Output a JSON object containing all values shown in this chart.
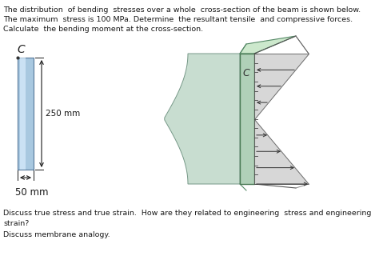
{
  "bg_color": "#ffffff",
  "text_color": "#1a1a1a",
  "line1": "The distribution  of bending  stresses over a whole  cross-section of the beam is shown below.",
  "line2": "The maximum  stress is 100 MPa. Determine  the resultant tensile  and compressive forces.",
  "line3": "Calculate  the bending moment at the cross-section.",
  "label_C_left": "C",
  "label_250mm": "250 mm",
  "label_50mm": "50 mm",
  "label_C_right": "C",
  "discuss_line1": "Discuss true stress and true strain.  How are they related to engineering  stress and engineering",
  "discuss_line2": "strain?",
  "discuss_line3": "Discuss membrane analogy.",
  "rect_color_left": "#a8c8e0",
  "rect_color_right": "#c8e0e8",
  "body_color": "#c8ddd0",
  "body_top_color": "#d8e8d8",
  "stress_fill": "#d0d0d0",
  "stress_edge": "#555555",
  "front_face_color": "#b0d0b8",
  "front_face_edge": "#4a7a55",
  "dim_color": "#222222",
  "arrow_color": "#333333"
}
